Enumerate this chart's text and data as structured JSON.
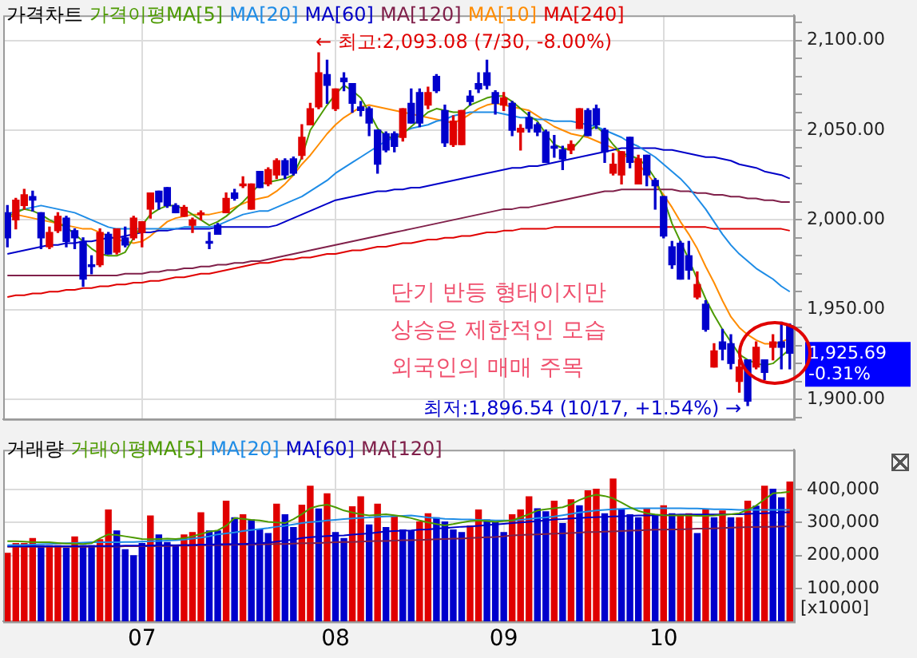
{
  "chart_data": [
    {
      "type": "candlestick",
      "title": "가격차트",
      "categories": [
        null,
        null,
        null,
        null,
        null,
        null,
        null,
        null,
        null,
        null,
        null,
        null,
        null,
        null,
        null,
        null,
        "07",
        null,
        null,
        null,
        null,
        null,
        null,
        null,
        null,
        null,
        null,
        null,
        null,
        null,
        null,
        null,
        null,
        null,
        null,
        null,
        null,
        null,
        null,
        "08",
        null,
        null,
        null,
        null,
        null,
        null,
        null,
        null,
        null,
        null,
        null,
        null,
        null,
        null,
        null,
        null,
        null,
        null,
        null,
        "09",
        null,
        null,
        null,
        null,
        null,
        null,
        null,
        null,
        null,
        null,
        null,
        null,
        null,
        null,
        null,
        null,
        null,
        null,
        "10",
        null,
        null,
        null,
        null,
        null,
        null,
        null,
        null,
        null,
        null,
        null,
        null,
        null,
        null,
        null
      ],
      "ohlc": [
        [
          2004,
          2008,
          1985,
          1990
        ],
        [
          2000,
          2012,
          1995,
          2011
        ],
        [
          2008,
          2017,
          2006,
          2014
        ],
        [
          2013,
          2016,
          2005,
          2011
        ],
        [
          2004,
          2004,
          1984,
          1990
        ],
        [
          1985,
          1996,
          1984,
          1993
        ],
        [
          1994,
          2004,
          1993,
          2002
        ],
        [
          2001,
          2002,
          1985,
          1988
        ],
        [
          1994,
          1995,
          1984,
          1990
        ],
        [
          1988,
          1990,
          1963,
          1967
        ],
        [
          1975,
          1980,
          1970,
          1974
        ],
        [
          1975,
          1995,
          1974,
          1993
        ],
        [
          1992,
          1993,
          1981,
          1981
        ],
        [
          1982,
          1995,
          1981,
          1995
        ],
        [
          1990,
          1996,
          1985,
          1986
        ],
        [
          1990,
          2002,
          1989,
          2001
        ],
        [
          1993,
          1999,
          1985,
          1999
        ],
        [
          2006,
          2015,
          2001,
          2015
        ],
        [
          2016,
          2016,
          2006,
          2010
        ],
        [
          2018,
          2018,
          2007,
          2008
        ],
        [
          2008,
          2009,
          2004,
          2004
        ],
        [
          2002,
          2008,
          2002,
          2007
        ],
        [
          1997,
          2001,
          1993,
          2000
        ],
        [
          2003,
          2005,
          2000,
          2003
        ],
        [
          1988,
          1993,
          1984,
          1987
        ],
        [
          1997,
          1998,
          1992,
          1992
        ],
        [
          2004,
          2015,
          2004,
          2012
        ],
        [
          2015,
          2017,
          2011,
          2012
        ],
        [
          2019,
          2024,
          2018,
          2020
        ],
        [
          2006,
          2020,
          2006,
          2020
        ],
        [
          2027,
          2027,
          2018,
          2018
        ],
        [
          2020,
          2029,
          2019,
          2028
        ],
        [
          2025,
          2034,
          2023,
          2033
        ],
        [
          2033,
          2034,
          2023,
          2025
        ],
        [
          2034,
          2035,
          2025,
          2026
        ],
        [
          2036,
          2053,
          2034,
          2046
        ],
        [
          2053,
          2065,
          2053,
          2062
        ],
        [
          2063,
          2093.08,
          2062,
          2082
        ],
        [
          2081,
          2089,
          2065,
          2075
        ],
        [
          2062,
          2073,
          2061,
          2073
        ],
        [
          2079,
          2082,
          2072,
          2077
        ],
        [
          2076,
          2076,
          2060,
          2065
        ],
        [
          2063,
          2066,
          2058,
          2061
        ],
        [
          2062,
          2063,
          2047,
          2054
        ],
        [
          2050,
          2050,
          2026,
          2031
        ],
        [
          2048,
          2049,
          2038,
          2039
        ],
        [
          2048,
          2049,
          2038,
          2041
        ],
        [
          2046,
          2062,
          2044,
          2062
        ],
        [
          2065,
          2073,
          2054,
          2054
        ],
        [
          2071,
          2073,
          2052,
          2054
        ],
        [
          2064,
          2074,
          2062,
          2071
        ],
        [
          2080,
          2081,
          2071,
          2072
        ],
        [
          2061,
          2064,
          2041,
          2043
        ],
        [
          2042,
          2058,
          2041,
          2055
        ],
        [
          2042,
          2061,
          2042,
          2061
        ],
        [
          2069,
          2072,
          2064,
          2066
        ],
        [
          2076,
          2082,
          2071,
          2073
        ],
        [
          2082,
          2089,
          2073,
          2075
        ],
        [
          2071,
          2072,
          2059,
          2065
        ],
        [
          2064,
          2071,
          2061,
          2068
        ],
        [
          2065,
          2066,
          2047,
          2050
        ],
        [
          2049,
          2053,
          2039,
          2051
        ],
        [
          2057,
          2060,
          2049,
          2051
        ],
        [
          2053,
          2054,
          2047,
          2049
        ],
        [
          2049,
          2050,
          2032,
          2032
        ],
        [
          2041,
          2047,
          2035,
          2040
        ],
        [
          2039,
          2041,
          2028,
          2034
        ],
        [
          2039,
          2044,
          2037,
          2042
        ],
        [
          2051,
          2062,
          2051,
          2062
        ],
        [
          2061,
          2062,
          2047,
          2047
        ],
        [
          2062,
          2064,
          2051,
          2053
        ],
        [
          2050,
          2051,
          2032,
          2038
        ],
        [
          2026,
          2037,
          2025,
          2031
        ],
        [
          2025,
          2038,
          2020,
          2038
        ],
        [
          2046,
          2046,
          2029,
          2032
        ],
        [
          2020,
          2036,
          2020,
          2034
        ],
        [
          2036,
          2036,
          2019,
          2025
        ],
        [
          2022,
          2023,
          2006,
          2019
        ],
        [
          2013,
          2013,
          1990,
          1991
        ],
        [
          1985,
          1988,
          1973,
          1975
        ],
        [
          1987,
          1988,
          1967,
          1967
        ],
        [
          1980,
          1988,
          1967,
          1972
        ],
        [
          1957,
          1971,
          1956,
          1964
        ],
        [
          1953,
          1955,
          1938,
          1939
        ],
        [
          1918,
          1931,
          1918,
          1927
        ],
        [
          1932,
          1939,
          1922,
          1928
        ],
        [
          1931,
          1936,
          1917,
          1920
        ],
        [
          1910,
          1922,
          1904,
          1918
        ],
        [
          1922,
          1922,
          1896.54,
          1899
        ],
        [
          1918,
          1932,
          1917,
          1929
        ],
        [
          1922,
          1922,
          1911,
          1915
        ],
        [
          1929,
          1936,
          1922,
          1932
        ],
        [
          1932,
          1943,
          1917,
          1929
        ],
        [
          1941,
          1942,
          1917,
          1925.69
        ]
      ],
      "colors": [
        "#0000cc",
        "#e00000",
        "#e00000",
        "#0000cc",
        "#0000cc",
        "#e00000",
        "#e00000",
        "#0000cc",
        "#0000cc",
        "#0000cc",
        "#0000cc",
        "#e00000",
        "#0000cc",
        "#e00000",
        "#0000cc",
        "#e00000",
        "#e00000",
        "#e00000",
        "#0000cc",
        "#0000cc",
        "#0000cc",
        "#e00000",
        "#e00000",
        "#e00000",
        "#0000cc",
        "#0000cc",
        "#e00000",
        "#0000cc",
        "#e00000",
        "#e00000",
        "#0000cc",
        "#e00000",
        "#e00000",
        "#0000cc",
        "#0000cc",
        "#e00000",
        "#e00000",
        "#e00000",
        "#0000cc",
        "#e00000",
        "#0000cc",
        "#0000cc",
        "#0000cc",
        "#0000cc",
        "#0000cc",
        "#0000cc",
        "#0000cc",
        "#e00000",
        "#0000cc",
        "#0000cc",
        "#e00000",
        "#0000cc",
        "#0000cc",
        "#e00000",
        "#e00000",
        "#0000cc",
        "#0000cc",
        "#0000cc",
        "#0000cc",
        "#e00000",
        "#0000cc",
        "#e00000",
        "#0000cc",
        "#0000cc",
        "#0000cc",
        "#0000cc",
        "#0000cc",
        "#e00000",
        "#e00000",
        "#0000cc",
        "#0000cc",
        "#0000cc",
        "#e00000",
        "#e00000",
        "#0000cc",
        "#e00000",
        "#0000cc",
        "#0000cc",
        "#0000cc",
        "#0000cc",
        "#0000cc",
        "#0000cc",
        "#e00000",
        "#0000cc",
        "#e00000",
        "#0000cc",
        "#0000cc",
        "#e00000",
        "#0000cc",
        "#e00000",
        "#0000cc",
        "#e00000",
        "#0000cc",
        "#0000cc"
      ],
      "series": [
        {
          "type": "line",
          "name": "가격이평MA[5]",
          "color": "#4c9a00",
          "values": [
            2002,
            2004,
            2006,
            2005,
            2003,
            2000,
            1998,
            1996,
            1992,
            1988,
            1984,
            1981,
            1980,
            1980,
            1982,
            1990,
            1997,
            2003,
            2006,
            2008,
            2008,
            2006,
            2003,
            2000,
            1997,
            1999,
            2002,
            2006,
            2010,
            2015,
            2020,
            2021,
            2022,
            2023,
            2025,
            2035,
            2050,
            2057,
            2064,
            2070,
            2075,
            2072,
            2068,
            2060,
            2051,
            2047,
            2045,
            2048,
            2052,
            2056,
            2060,
            2062,
            2061,
            2060,
            2060,
            2064,
            2066,
            2068,
            2069,
            2069,
            2066,
            2062,
            2058,
            2055,
            2048,
            2042,
            2040,
            2039,
            2044,
            2050,
            2052,
            2048,
            2042,
            2037,
            2036,
            2034,
            2030,
            2023,
            2012,
            1998,
            1988,
            1978,
            1967,
            1956,
            1947,
            1939,
            1932,
            1925,
            1922,
            1920,
            1919,
            1920,
            1924,
            1928
          ]
        },
        {
          "type": "line",
          "name": "MA[20]",
          "color": "#1e8ce6",
          "values": [
            2003,
            2005,
            2006,
            2007,
            2008,
            2007,
            2006,
            2005,
            2004,
            2002,
            2000,
            1998,
            1996,
            1995,
            1995,
            1995,
            1995,
            1995,
            1995,
            1995,
            1995,
            1996,
            1996,
            1996,
            1996,
            1997,
            1999,
            2001,
            2003,
            2004,
            2005,
            2005,
            2007,
            2009,
            2011,
            2013,
            2016,
            2019,
            2022,
            2026,
            2029,
            2032,
            2035,
            2038,
            2041,
            2044,
            2046,
            2049,
            2051,
            2052,
            2053,
            2055,
            2056,
            2058,
            2059,
            2060,
            2060,
            2060,
            2060,
            2059,
            2058,
            2057,
            2057,
            2056,
            2056,
            2055,
            2055,
            2055,
            2054,
            2053,
            2052,
            2050,
            2048,
            2046,
            2043,
            2041,
            2038,
            2035,
            2031,
            2027,
            2023,
            2018,
            2012,
            2006,
            1999,
            1992,
            1986,
            1981,
            1977,
            1973,
            1970,
            1967,
            1963,
            1960
          ]
        },
        {
          "type": "line",
          "name": "MA[60]",
          "color": "#0000c8",
          "values": [
            1981,
            1982,
            1983,
            1984,
            1985,
            1986,
            1986,
            1987,
            1987,
            1988,
            1988,
            1989,
            1990,
            1990,
            1991,
            1992,
            1993,
            1993,
            1994,
            1994,
            1995,
            1995,
            1995,
            1995,
            1995,
            1996,
            1996,
            1996,
            1996,
            1996,
            1996,
            1996,
            1997,
            1999,
            2001,
            2003,
            2005,
            2007,
            2009,
            2011,
            2012,
            2013,
            2014,
            2015,
            2016,
            2016,
            2017,
            2017,
            2018,
            2018,
            2019,
            2020,
            2021,
            2022,
            2023,
            2024,
            2025,
            2026,
            2027,
            2028,
            2029,
            2029,
            2030,
            2030,
            2031,
            2032,
            2033,
            2034,
            2035,
            2036,
            2037,
            2038,
            2039,
            2040,
            2040,
            2040,
            2040,
            2040,
            2039,
            2039,
            2038,
            2037,
            2036,
            2035,
            2035,
            2034,
            2033,
            2031,
            2030,
            2029,
            2027,
            2026,
            2025,
            2023
          ]
        },
        {
          "type": "line",
          "name": "MA[120]",
          "color": "#80204a",
          "values": [
            1969,
            1969,
            1969,
            1969,
            1969,
            1969,
            1969,
            1969,
            1969,
            1969,
            1969,
            1969,
            1969,
            1969,
            1970,
            1970,
            1970,
            1971,
            1971,
            1972,
            1972,
            1973,
            1973,
            1974,
            1974,
            1975,
            1975,
            1976,
            1976,
            1977,
            1977,
            1978,
            1979,
            1980,
            1981,
            1982,
            1983,
            1984,
            1985,
            1986,
            1987,
            1988,
            1989,
            1990,
            1991,
            1992,
            1993,
            1994,
            1995,
            1996,
            1997,
            1998,
            1999,
            2000,
            2001,
            2002,
            2003,
            2004,
            2005,
            2006,
            2006,
            2007,
            2007,
            2008,
            2009,
            2010,
            2011,
            2012,
            2013,
            2014,
            2015,
            2016,
            2016,
            2017,
            2017,
            2017,
            2017,
            2017,
            2017,
            2017,
            2016,
            2016,
            2015,
            2015,
            2014,
            2014,
            2013,
            2013,
            2012,
            2012,
            2011,
            2011,
            2010,
            2010
          ]
        },
        {
          "type": "line",
          "name": "MA[10]",
          "color": "#ff8c00",
          "values": [
            2001,
            2003,
            2002,
            2001,
            2000,
            1999,
            1998,
            1997,
            1996,
            1995,
            1995,
            1993,
            1991,
            1989,
            1988,
            1987,
            1988,
            1991,
            1995,
            1999,
            2001,
            2002,
            2003,
            2003,
            2003,
            2004,
            2005,
            2007,
            2009,
            2011,
            2012,
            2013,
            2016,
            2020,
            2025,
            2031,
            2036,
            2042,
            2048,
            2053,
            2057,
            2060,
            2063,
            2064,
            2063,
            2062,
            2061,
            2060,
            2059,
            2058,
            2057,
            2056,
            2055,
            2054,
            2056,
            2059,
            2062,
            2064,
            2065,
            2064,
            2063,
            2062,
            2061,
            2058,
            2055,
            2052,
            2050,
            2048,
            2047,
            2046,
            2044,
            2042,
            2040,
            2037,
            2034,
            2031,
            2026,
            2020,
            2014,
            2007,
            1999,
            1992,
            1984,
            1974,
            1965,
            1955,
            1946,
            1940,
            1936,
            1933,
            1931,
            1931,
            1932,
            1934
          ]
        },
        {
          "type": "line",
          "name": "MA[240]",
          "color": "#e00000",
          "values": [
            1957,
            1958,
            1958,
            1959,
            1959,
            1960,
            1960,
            1961,
            1961,
            1962,
            1962,
            1963,
            1963,
            1964,
            1964,
            1965,
            1965,
            1966,
            1966,
            1967,
            1968,
            1968,
            1969,
            1970,
            1970,
            1971,
            1972,
            1973,
            1974,
            1975,
            1976,
            1976,
            1977,
            1978,
            1978,
            1979,
            1979,
            1980,
            1981,
            1981,
            1982,
            1983,
            1983,
            1984,
            1985,
            1985,
            1986,
            1987,
            1987,
            1988,
            1989,
            1989,
            1990,
            1990,
            1991,
            1991,
            1992,
            1993,
            1993,
            1994,
            1994,
            1995,
            1995,
            1995,
            1995,
            1996,
            1996,
            1996,
            1996,
            1996,
            1996,
            1996,
            1996,
            1996,
            1996,
            1996,
            1996,
            1996,
            1996,
            1996,
            1996,
            1996,
            1996,
            1996,
            1995,
            1995,
            1995,
            1995,
            1995,
            1995,
            1995,
            1995,
            1995,
            1994
          ]
        }
      ],
      "ylim": [
        1889,
        2114
      ],
      "yticks": [
        {
          "value": 1890,
          "label": null
        },
        {
          "value": 1900,
          "label": "1,900.00"
        },
        {
          "value": 1910,
          "label": null
        },
        {
          "value": 1920,
          "label": null
        },
        {
          "value": 1930,
          "label": null
        },
        {
          "value": 1940,
          "label": null
        },
        {
          "value": 1950,
          "label": "1,950.00"
        },
        {
          "value": 1960,
          "label": null
        },
        {
          "value": 1970,
          "label": null
        },
        {
          "value": 1980,
          "label": null
        },
        {
          "value": 1990,
          "label": null
        },
        {
          "value": 2000,
          "label": "2,000.00"
        },
        {
          "value": 2010,
          "label": null
        },
        {
          "value": 2020,
          "label": null
        },
        {
          "value": 2030,
          "label": null
        },
        {
          "value": 2040,
          "label": null
        },
        {
          "value": 2050,
          "label": "2,050.00"
        },
        {
          "value": 2060,
          "label": null
        },
        {
          "value": 2070,
          "label": null
        },
        {
          "value": 2080,
          "label": null
        },
        {
          "value": 2090,
          "label": null
        },
        {
          "value": 2100,
          "label": "2,100.00"
        },
        {
          "value": 2110,
          "label": null
        }
      ],
      "grid": true,
      "legend": "top left",
      "tick_labels": "y",
      "annotations": [
        "← 최고:2,093.08 (7/30, -8.00%)",
        "최저:1,896.54 (10/17, +1.54%) →",
        "1,925.69 -0.31%",
        "단기 반등 형태이지만",
        "상승은 제한적인 모습",
        "외국인의 매매 주목"
      ]
    },
    {
      "type": "bar",
      "title": "거래량",
      "ylabel": "[x1000]",
      "categories": [
        null,
        null,
        null,
        null,
        null,
        null,
        null,
        null,
        null,
        null,
        null,
        null,
        null,
        null,
        null,
        null,
        "07",
        null,
        null,
        null,
        null,
        null,
        null,
        null,
        null,
        null,
        null,
        null,
        null,
        null,
        null,
        null,
        null,
        null,
        null,
        null,
        null,
        null,
        null,
        "08",
        null,
        null,
        null,
        null,
        null,
        null,
        null,
        null,
        null,
        null,
        null,
        null,
        null,
        null,
        null,
        null,
        null,
        null,
        null,
        "09",
        null,
        null,
        null,
        null,
        null,
        null,
        null,
        null,
        null,
        null,
        null,
        null,
        null,
        null,
        null,
        null,
        null,
        null,
        "10",
        null,
        null,
        null,
        null,
        null,
        null,
        null,
        null,
        null,
        null,
        null,
        null,
        null,
        null,
        null
      ],
      "series": [
        {
          "values": [
            208000,
            238000,
            238000,
            253000,
            231000,
            231000,
            231000,
            223000,
            258000,
            231000,
            231000,
            249000,
            339000,
            276000,
            219000,
            201000,
            238000,
            321000,
            264000,
            241000,
            231000,
            264000,
            271000,
            331000,
            276000,
            276000,
            366000,
            316000,
            325000,
            309000,
            279000,
            268000,
            357000,
            325000,
            286000,
            354000,
            411000,
            342000,
            388000,
            271000,
            253000,
            349000,
            379000,
            294000,
            357000,
            286000,
            321000,
            279000,
            276000,
            303000,
            328000,
            316000,
            303000,
            279000,
            271000,
            291000,
            339000,
            309000,
            303000,
            271000,
            325000,
            339000,
            379000,
            343000,
            334000,
            366000,
            298000,
            370000,
            352000,
            397000,
            402000,
            328000,
            433000,
            339000,
            325000,
            316000,
            342000,
            325000,
            352000,
            328000,
            325000,
            328000,
            268000,
            339000,
            316000,
            336000,
            316000,
            316000,
            366000,
            351000,
            411000,
            402000,
            376000,
            424000
          ],
          "colors": [
            "#e00000",
            "#e00000",
            "#e00000",
            "#e00000",
            "#0000cc",
            "#e00000",
            "#e00000",
            "#0000cc",
            "#e00000",
            "#0000cc",
            "#0000cc",
            "#e00000",
            "#e00000",
            "#0000cc",
            "#0000cc",
            "#0000cc",
            "#0000cc",
            "#e00000",
            "#0000cc",
            "#0000cc",
            "#0000cc",
            "#e00000",
            "#e00000",
            "#e00000",
            "#0000cc",
            "#0000cc",
            "#e00000",
            "#0000cc",
            "#e00000",
            "#0000cc",
            "#0000cc",
            "#0000cc",
            "#e00000",
            "#0000cc",
            "#0000cc",
            "#e00000",
            "#e00000",
            "#0000cc",
            "#e00000",
            "#0000cc",
            "#0000cc",
            "#e00000",
            "#e00000",
            "#0000cc",
            "#e00000",
            "#0000cc",
            "#e00000",
            "#0000cc",
            "#0000cc",
            "#e00000",
            "#e00000",
            "#0000cc",
            "#0000cc",
            "#0000cc",
            "#0000cc",
            "#e00000",
            "#e00000",
            "#0000cc",
            "#0000cc",
            "#0000cc",
            "#e00000",
            "#e00000",
            "#e00000",
            "#0000cc",
            "#0000cc",
            "#e00000",
            "#0000cc",
            "#e00000",
            "#0000cc",
            "#e00000",
            "#e00000",
            "#0000cc",
            "#e00000",
            "#0000cc",
            "#0000cc",
            "#0000cc",
            "#e00000",
            "#0000cc",
            "#e00000",
            "#0000cc",
            "#e00000",
            "#e00000",
            "#0000cc",
            "#e00000",
            "#0000cc",
            "#e00000",
            "#0000cc",
            "#e00000",
            "#e00000",
            "#0000cc",
            "#e00000",
            "#0000cc",
            "#0000cc",
            "#e00000"
          ]
        },
        {
          "type": "line",
          "name": "거래이평MA[5]",
          "color": "#4c9a00",
          "values": [
            243000,
            243000,
            242000,
            240000,
            240000,
            240000,
            238000,
            236000,
            236000,
            235000,
            237000,
            252000,
            264000,
            262000,
            258000,
            254000,
            250000,
            249000,
            250000,
            251000,
            250000,
            252000,
            258000,
            265000,
            272000,
            276000,
            290000,
            313000,
            311000,
            308000,
            306000,
            302000,
            300000,
            298000,
            310000,
            325000,
            343000,
            350000,
            354000,
            346000,
            336000,
            330000,
            325000,
            321000,
            323000,
            325000,
            322000,
            318000,
            313000,
            306000,
            300000,
            295000,
            291000,
            295000,
            300000,
            304000,
            306000,
            304000,
            302000,
            304000,
            306000,
            315000,
            325000,
            336000,
            340000,
            343000,
            346000,
            355000,
            368000,
            378000,
            384000,
            380000,
            373000,
            360000,
            346000,
            335000,
            328000,
            324000,
            322000,
            321000,
            321000,
            321000,
            320000,
            320000,
            321000,
            323000,
            325000,
            328000,
            338000,
            351000,
            370000,
            388000,
            390000,
            393000
          ]
        },
        {
          "type": "line",
          "name": "MA[20]",
          "color": "#1e8ce6",
          "values": [
            231000,
            232000,
            232000,
            233000,
            234000,
            235000,
            236000,
            237000,
            238000,
            239000,
            240000,
            240000,
            240000,
            240000,
            241000,
            241000,
            242000,
            243000,
            244000,
            245000,
            246000,
            248000,
            251000,
            254000,
            258000,
            264000,
            267000,
            270000,
            274000,
            277000,
            280000,
            283000,
            287000,
            290000,
            294000,
            298000,
            301000,
            303000,
            306000,
            308000,
            310000,
            312000,
            314000,
            315000,
            317000,
            318000,
            319000,
            320000,
            321000,
            318000,
            315000,
            313000,
            311000,
            310000,
            309000,
            309000,
            308000,
            307000,
            306000,
            306000,
            306000,
            308000,
            310000,
            313000,
            315000,
            318000,
            322000,
            326000,
            330000,
            333000,
            336000,
            338000,
            340000,
            341000,
            342000,
            343000,
            343000,
            343000,
            343000,
            343000,
            343000,
            342000,
            342000,
            341000,
            340000,
            340000,
            339000,
            338000,
            338000,
            338000,
            338000,
            338000,
            338000,
            338000
          ]
        },
        {
          "type": "line",
          "name": "MA[60]",
          "color": "#0000c8",
          "values": [
            228000,
            228000,
            228000,
            228000,
            228000,
            228000,
            228000,
            228000,
            228000,
            229000,
            229000,
            229000,
            229000,
            229000,
            230000,
            230000,
            230000,
            230000,
            231000,
            231000,
            231000,
            232000,
            232000,
            233000,
            233000,
            234000,
            234000,
            235000,
            235000,
            236000,
            237000,
            239000,
            242000,
            245000,
            248000,
            253000,
            255000,
            257000,
            259000,
            260000,
            261000,
            263000,
            265000,
            267000,
            270000,
            273000,
            274000,
            275000,
            276000,
            278000,
            279000,
            281000,
            283000,
            285000,
            287000,
            288000,
            290000,
            292000,
            294000,
            296000,
            298000,
            300000,
            302000,
            304000,
            306000,
            309000,
            310000,
            312000,
            313000,
            315000,
            316000,
            317000,
            318000,
            319000,
            320000,
            321000,
            321000,
            322000,
            322000,
            323000,
            324000,
            324000,
            324000,
            324000,
            324000,
            324000,
            325000,
            325000,
            326000,
            327000,
            328000,
            329000,
            330000,
            331000
          ]
        },
        {
          "type": "line",
          "name": "MA[120]",
          "color": "#80204a",
          "values": [
            226000,
            226000,
            226000,
            226000,
            226000,
            226000,
            226000,
            226000,
            226000,
            226000,
            227000,
            227000,
            227000,
            227000,
            228000,
            228000,
            228000,
            228000,
            229000,
            229000,
            230000,
            230000,
            230000,
            231000,
            231000,
            232000,
            232000,
            233000,
            233000,
            233000,
            234000,
            234000,
            235000,
            235000,
            236000,
            237000,
            237000,
            238000,
            239000,
            240000,
            241000,
            241000,
            242000,
            243000,
            244000,
            244000,
            245000,
            246000,
            246000,
            247000,
            248000,
            249000,
            250000,
            251000,
            251000,
            253000,
            254000,
            255000,
            256000,
            258000,
            261000,
            262000,
            263000,
            264000,
            265000,
            266000,
            267000,
            268000,
            269000,
            271000,
            271000,
            272000,
            273000,
            274000,
            275000,
            276000,
            277000,
            278000,
            278000,
            279000,
            279000,
            280000,
            281000,
            281000,
            282000,
            283000,
            284000,
            285000,
            286000,
            286000,
            287000,
            287000,
            288000,
            288000
          ]
        }
      ],
      "ylim": [
        0,
        520000
      ],
      "yticks": [
        {
          "value": 100000,
          "label": "100,000"
        },
        {
          "value": 200000,
          "label": "200,000"
        },
        {
          "value": 300000,
          "label": "300,000"
        },
        {
          "value": 400000,
          "label": "400,000"
        }
      ],
      "grid": true,
      "legend": "top left"
    }
  ]
}
